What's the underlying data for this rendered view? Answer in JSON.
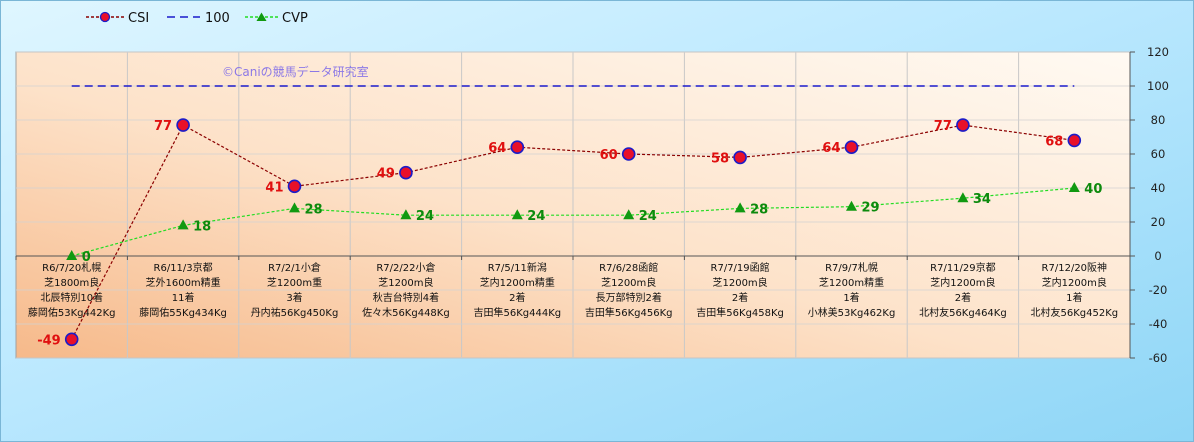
{
  "chart_data": {
    "type": "line",
    "watermark": "©Caniの競馬データ研究室",
    "ylim": [
      -60,
      120
    ],
    "yticks": [
      -60,
      -40,
      -20,
      0,
      20,
      40,
      60,
      80,
      100,
      120
    ],
    "categories": [
      [
        "R6/7/20札幌",
        "芝1800m良",
        "北辰特別10着",
        "藤岡佑53Kg442Kg"
      ],
      [
        "R6/11/3京都",
        "芝外1600m精重",
        "11着",
        "藤岡佑55Kg434Kg"
      ],
      [
        "R7/2/1小倉",
        "芝1200m重",
        "3着",
        "丹内祐56Kg450Kg"
      ],
      [
        "R7/2/22小倉",
        "芝1200m良",
        "秋吉台特別4着",
        "佐々木56Kg448Kg"
      ],
      [
        "R7/5/11新潟",
        "芝内1200m精重",
        "2着",
        "吉田隼56Kg444Kg"
      ],
      [
        "R7/6/28函館",
        "芝1200m良",
        "長万部特別2着",
        "吉田隼56Kg456Kg"
      ],
      [
        "R7/7/19函館",
        "芝1200m良",
        "2着",
        "吉田隼56Kg458Kg"
      ],
      [
        "R7/9/7札幌",
        "芝1200m精重",
        "1着",
        "小林美53Kg462Kg"
      ],
      [
        "R7/11/29京都",
        "芝内1200m良",
        "2着",
        "北村友56Kg464Kg"
      ],
      [
        "R7/12/20阪神",
        "芝内1200m良",
        "1着",
        "北村友56Kg452Kg"
      ]
    ],
    "series": [
      {
        "name": "CSI",
        "values": [
          -49,
          77,
          41,
          49,
          64,
          60,
          58,
          64,
          77,
          68
        ],
        "color": "#8b0000",
        "marker_fill": "#e8102a",
        "marker_edge": "#1c1cc8"
      },
      {
        "name": "100",
        "values": [
          100,
          100,
          100,
          100,
          100,
          100,
          100,
          100,
          100,
          100
        ],
        "color": "#1a1acc"
      },
      {
        "name": "CVP",
        "values": [
          0,
          18,
          28,
          24,
          24,
          24,
          28,
          29,
          34,
          40
        ],
        "color": "#22dd22",
        "marker_fill": "#119911"
      }
    ],
    "grid": true,
    "legend_position": "top-left"
  }
}
